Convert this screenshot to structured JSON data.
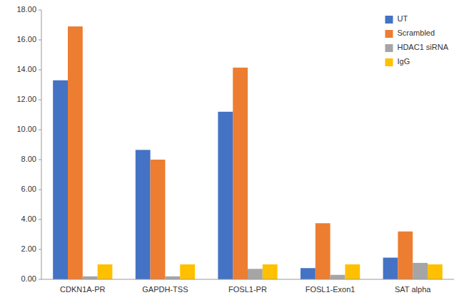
{
  "chart_data": {
    "type": "bar",
    "categories": [
      "CDKN1A-PR",
      "GAPDH-TSS",
      "FOSL1-PR",
      "FOSL1-Exon1",
      "SAT alpha"
    ],
    "series": [
      {
        "name": "UT",
        "color": "#4472C4",
        "values": [
          13.3,
          8.65,
          11.2,
          0.75,
          1.45
        ]
      },
      {
        "name": "Scrambled",
        "color": "#ED7D31",
        "values": [
          16.9,
          8.0,
          14.15,
          3.75,
          3.2
        ]
      },
      {
        "name": "HDAC1 siRNA",
        "color": "#A5A5A5",
        "values": [
          0.2,
          0.2,
          0.7,
          0.3,
          1.1
        ]
      },
      {
        "name": "IgG",
        "color": "#FFC000",
        "values": [
          1.0,
          1.0,
          1.0,
          1.0,
          1.0
        ]
      }
    ],
    "ylim": [
      0,
      18.0
    ],
    "yticks": [
      {
        "value": 0.0,
        "label": "0.00"
      },
      {
        "value": 2.0,
        "label": "2.00"
      },
      {
        "value": 4.0,
        "label": "4.00"
      },
      {
        "value": 6.0,
        "label": "6.00"
      },
      {
        "value": 8.0,
        "label": "8.00"
      },
      {
        "value": 10.0,
        "label": "10.00"
      },
      {
        "value": 12.0,
        "label": "12.00"
      },
      {
        "value": 14.0,
        "label": "14.00"
      },
      {
        "value": 16.0,
        "label": "16.00"
      },
      {
        "value": 18.0,
        "label": "18.00"
      }
    ],
    "grid": false,
    "legend": "upper right"
  }
}
